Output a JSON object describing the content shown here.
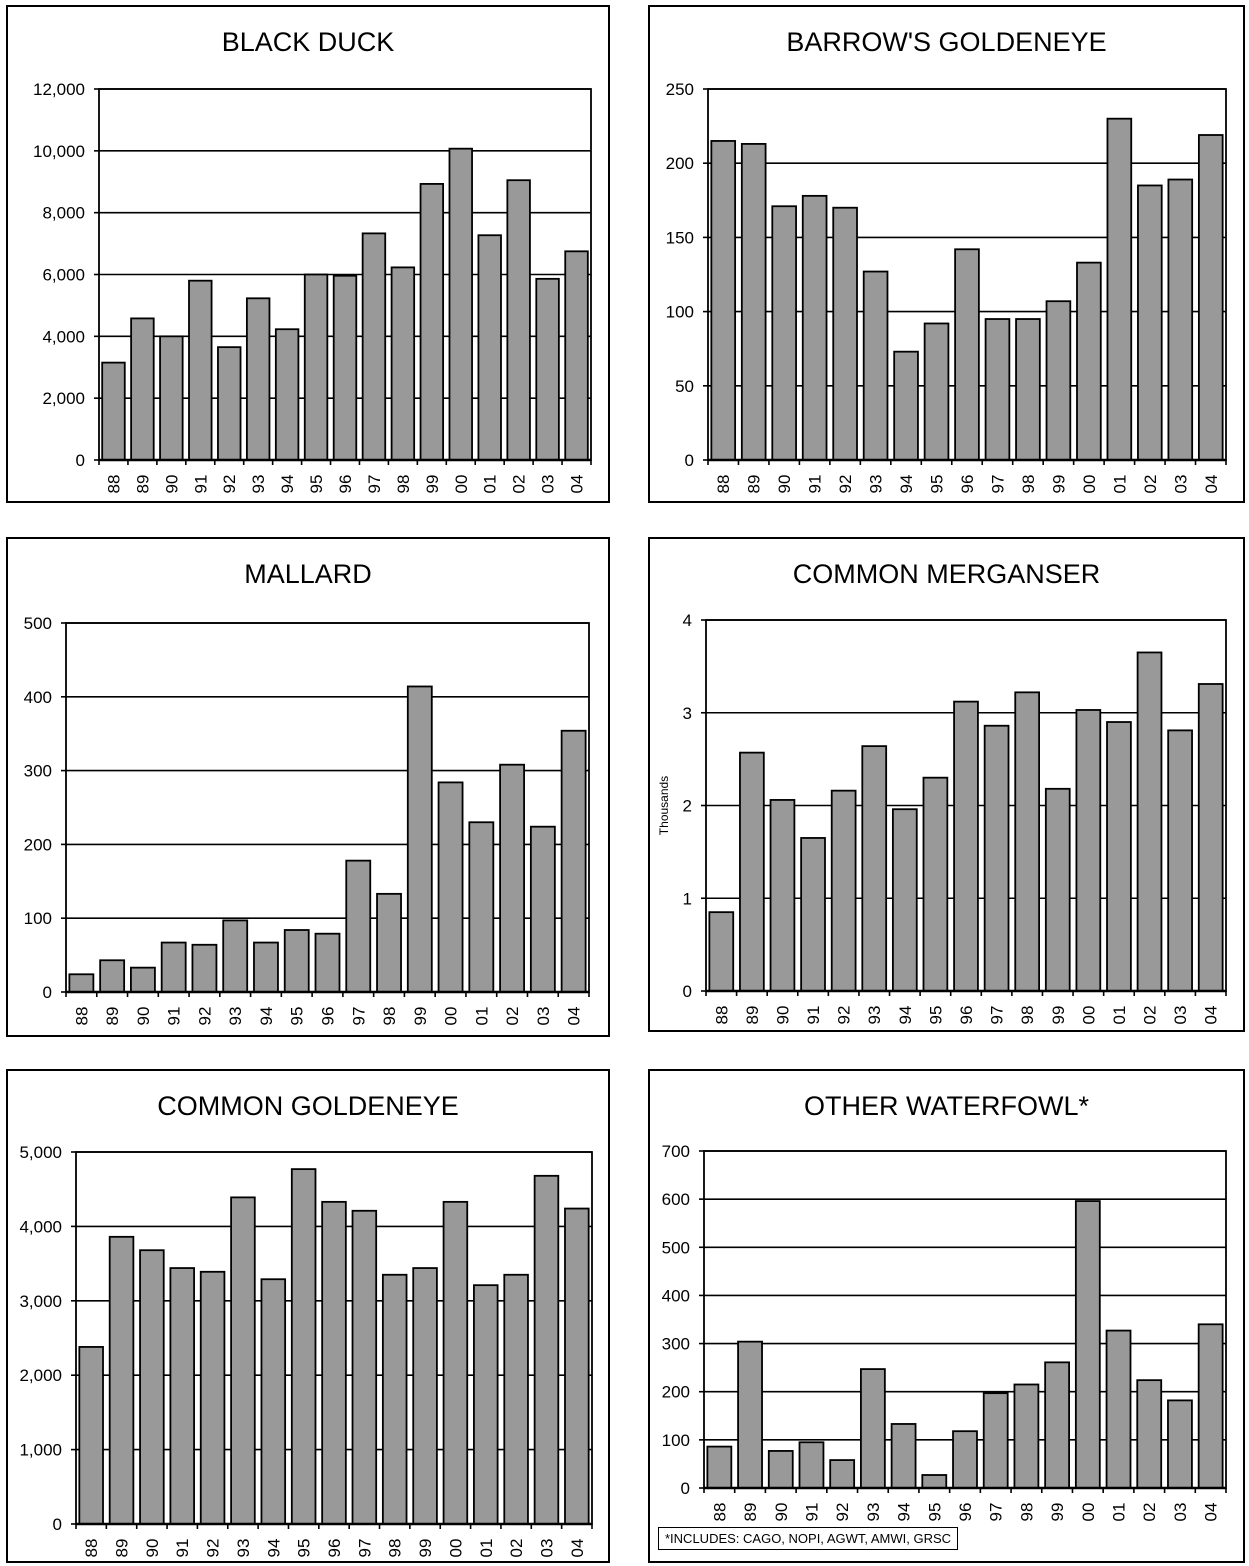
{
  "chart_data": [
    {
      "type": "bar",
      "title": "BLACK DUCK",
      "categories": [
        "88",
        "89",
        "90",
        "91",
        "92",
        "93",
        "94",
        "95",
        "96",
        "97",
        "98",
        "99",
        "00",
        "01",
        "02",
        "03",
        "04"
      ],
      "values": [
        3150,
        4580,
        4000,
        5800,
        3650,
        5230,
        4230,
        6000,
        5960,
        7330,
        6230,
        8930,
        10070,
        7270,
        9050,
        5860,
        6750
      ],
      "ylim": [
        0,
        12000
      ],
      "yticks": [
        0,
        2000,
        4000,
        6000,
        8000,
        10000,
        12000
      ],
      "ytick_labels": [
        "0",
        "2,000",
        "4,000",
        "6,000",
        "8,000",
        "10,000",
        "12,000"
      ],
      "ylabel": "",
      "grid": true
    },
    {
      "type": "bar",
      "title": "BARROW'S GOLDENEYE",
      "categories": [
        "88",
        "89",
        "90",
        "91",
        "92",
        "93",
        "94",
        "95",
        "96",
        "97",
        "98",
        "99",
        "00",
        "01",
        "02",
        "03",
        "04"
      ],
      "values": [
        215,
        213,
        171,
        178,
        170,
        127,
        73,
        92,
        142,
        95,
        95,
        107,
        133,
        230,
        185,
        189,
        219
      ],
      "ylim": [
        0,
        250
      ],
      "yticks": [
        0,
        50,
        100,
        150,
        200,
        250
      ],
      "ytick_labels": [
        "0",
        "50",
        "100",
        "150",
        "200",
        "250"
      ],
      "ylabel": "",
      "grid": true
    },
    {
      "type": "bar",
      "title": "MALLARD",
      "categories": [
        "88",
        "89",
        "90",
        "91",
        "92",
        "93",
        "94",
        "95",
        "96",
        "97",
        "98",
        "99",
        "00",
        "01",
        "02",
        "03",
        "04"
      ],
      "values": [
        24,
        43,
        33,
        67,
        64,
        97,
        67,
        84,
        79,
        178,
        133,
        414,
        284,
        230,
        308,
        224,
        354
      ],
      "ylim": [
        0,
        500
      ],
      "yticks": [
        0,
        100,
        200,
        300,
        400,
        500
      ],
      "ytick_labels": [
        "0",
        "100",
        "200",
        "300",
        "400",
        "500"
      ],
      "ylabel": "",
      "grid": true
    },
    {
      "type": "bar",
      "title": "COMMON MERGANSER",
      "categories": [
        "88",
        "89",
        "90",
        "91",
        "92",
        "93",
        "94",
        "95",
        "96",
        "97",
        "98",
        "99",
        "00",
        "01",
        "02",
        "03",
        "04"
      ],
      "values": [
        0.85,
        2.57,
        2.06,
        1.65,
        2.16,
        2.64,
        1.96,
        2.3,
        3.12,
        2.86,
        3.22,
        2.18,
        3.03,
        2.9,
        3.65,
        2.81,
        3.31
      ],
      "ylim": [
        0,
        4
      ],
      "yticks": [
        0,
        1,
        2,
        3,
        4
      ],
      "ytick_labels": [
        "0",
        "1",
        "2",
        "3",
        "4"
      ],
      "ylabel": "Thousands",
      "grid": true
    },
    {
      "type": "bar",
      "title": "COMMON GOLDENEYE",
      "categories": [
        "88",
        "89",
        "90",
        "91",
        "92",
        "93",
        "94",
        "95",
        "96",
        "97",
        "98",
        "99",
        "00",
        "01",
        "02",
        "03",
        "04"
      ],
      "values": [
        2380,
        3860,
        3680,
        3440,
        3390,
        4390,
        3290,
        4770,
        4330,
        4210,
        3350,
        3440,
        4330,
        3210,
        3350,
        4680,
        4240
      ],
      "ylim": [
        0,
        5000
      ],
      "yticks": [
        0,
        1000,
        2000,
        3000,
        4000,
        5000
      ],
      "ytick_labels": [
        "0",
        "1,000",
        "2,000",
        "3,000",
        "4,000",
        "5,000"
      ],
      "ylabel": "",
      "grid": true
    },
    {
      "type": "bar",
      "title": "OTHER WATERFOWL*",
      "categories": [
        "88",
        "89",
        "90",
        "91",
        "92",
        "93",
        "94",
        "95",
        "96",
        "97",
        "98",
        "99",
        "00",
        "01",
        "02",
        "03",
        "04"
      ],
      "values": [
        86,
        304,
        77,
        95,
        58,
        247,
        133,
        27,
        118,
        197,
        215,
        261,
        596,
        327,
        224,
        182,
        340
      ],
      "ylim": [
        0,
        700
      ],
      "yticks": [
        0,
        100,
        200,
        300,
        400,
        500,
        600,
        700
      ],
      "ytick_labels": [
        "0",
        "100",
        "200",
        "300",
        "400",
        "500",
        "600",
        "700"
      ],
      "ylabel": "",
      "grid": true,
      "footnote": "*INCLUDES: CAGO, NOPI, AGWT, AMWI, GRSC"
    }
  ],
  "colors": {
    "bar_fill": "#999999",
    "bar_stroke": "#000000",
    "grid": "#000000",
    "background": "#ffffff"
  }
}
